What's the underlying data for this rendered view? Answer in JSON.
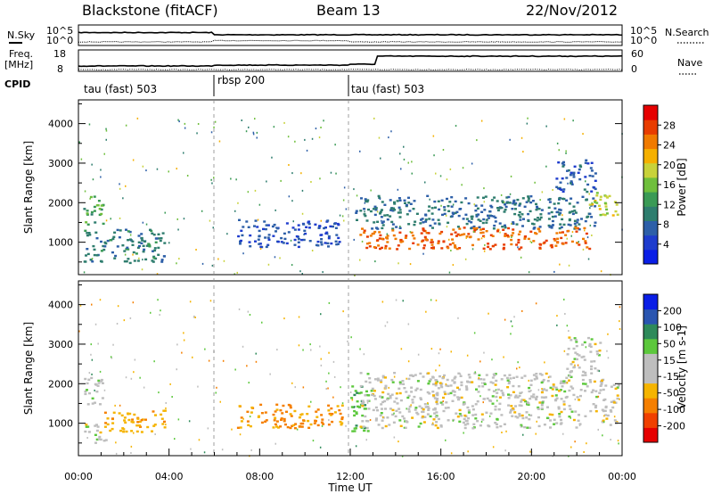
{
  "header": {
    "site": "Blackstone (fitACF)",
    "beam": "Beam 13",
    "date": "22/Nov/2012"
  },
  "panels": {
    "nsky_label": "N.Sky",
    "nsky_ticks": [
      "10^5",
      "10^0"
    ],
    "nsearch_label": "N.Search",
    "nsearch_ticks": [
      "10^5",
      "10^0"
    ],
    "freq_label": "Freq.",
    "freq_unit": "[MHz]",
    "freq_ticks": [
      "18",
      "8"
    ],
    "nave_label": "Nave",
    "nave_ticks": [
      "60",
      "0"
    ],
    "cpid_label": "CPID"
  },
  "cpid_segments": [
    {
      "label": "tau (fast) 503",
      "start": "00:00",
      "end": "06:00"
    },
    {
      "label": "rbsp 200",
      "start": "06:00",
      "end": "12:00"
    },
    {
      "label": "tau (fast) 503",
      "start": "12:00",
      "end": "24:00"
    }
  ],
  "colors": {
    "power_scale": [
      "#0a1ee6",
      "#1e3ccd",
      "#2d5fa8",
      "#2e7d6e",
      "#3a9a55",
      "#6fbf3c",
      "#c8d23a",
      "#f5b000",
      "#f07a00",
      "#e83c00",
      "#e60000"
    ],
    "velocity_scale": [
      "#e60000",
      "#f04000",
      "#f57f00",
      "#f5b400",
      "#bebebe",
      "#bebebe",
      "#5cc83c",
      "#2e8a5a",
      "#2a55b0",
      "#0a1ee6"
    ]
  },
  "chart_data": [
    {
      "type": "heatmap",
      "title": "Power",
      "ylabel": "Slant Range [km]",
      "xlabel": "",
      "x_range_hours": [
        0,
        24
      ],
      "ylim_km": [
        180,
        4600
      ],
      "yticks": [
        1000,
        2000,
        3000,
        4000
      ],
      "xticks": [],
      "colorbar_label": "Power [dB]",
      "colorbar_ticks": [
        4,
        8,
        12,
        16,
        20,
        24,
        28
      ],
      "colorbar_range": [
        0,
        32
      ],
      "regions": [
        {
          "t0": 0.2,
          "t1": 1.1,
          "r0": 1450,
          "r1": 2200,
          "value": 14
        },
        {
          "t0": 0.2,
          "t1": 3.8,
          "r0": 500,
          "r1": 1350,
          "value": 9
        },
        {
          "t0": 7.0,
          "t1": 11.5,
          "r0": 900,
          "r1": 1600,
          "value": 5
        },
        {
          "t0": 12.2,
          "t1": 22.8,
          "r0": 1350,
          "r1": 2200,
          "value": 8
        },
        {
          "t0": 12.4,
          "t1": 22.6,
          "r0": 850,
          "r1": 1400,
          "value": 27
        },
        {
          "t0": 22.5,
          "t1": 23.8,
          "r0": 1700,
          "r1": 2300,
          "value": 19
        },
        {
          "t0": 21.0,
          "t1": 22.8,
          "r0": 2300,
          "r1": 3100,
          "value": 6
        }
      ]
    },
    {
      "type": "heatmap",
      "title": "Velocity",
      "ylabel": "Slant Range [km]",
      "xlabel": "Time UT",
      "x_range_hours": [
        0,
        24
      ],
      "ylim_km": [
        180,
        4600
      ],
      "yticks": [
        1000,
        2000,
        3000,
        4000
      ],
      "xticks": [
        "00:00",
        "04:00",
        "08:00",
        "12:00",
        "16:00",
        "20:00",
        "00:00"
      ],
      "colorbar_label": "Velocity [m s-1]",
      "colorbar_ticks": [
        -200,
        -100,
        -50,
        -15,
        15,
        50,
        100,
        200
      ],
      "regions": [
        {
          "t0": 0.2,
          "t1": 1.1,
          "r0": 1500,
          "r1": 2200,
          "value": 0
        },
        {
          "t0": 0.2,
          "t1": 1.2,
          "r0": 500,
          "r1": 1000,
          "value": 0
        },
        {
          "t0": 1.0,
          "t1": 3.8,
          "r0": 800,
          "r1": 1350,
          "value": -40
        },
        {
          "t0": 7.0,
          "t1": 11.6,
          "r0": 900,
          "r1": 1500,
          "value": -60
        },
        {
          "t0": 12.0,
          "t1": 12.8,
          "r0": 700,
          "r1": 2000,
          "value": 40
        },
        {
          "t0": 12.4,
          "t1": 23.8,
          "r0": 900,
          "r1": 2300,
          "value": 0
        },
        {
          "t0": 21.5,
          "t1": 23.0,
          "r0": 2300,
          "r1": 3200,
          "value": 0
        }
      ]
    }
  ]
}
